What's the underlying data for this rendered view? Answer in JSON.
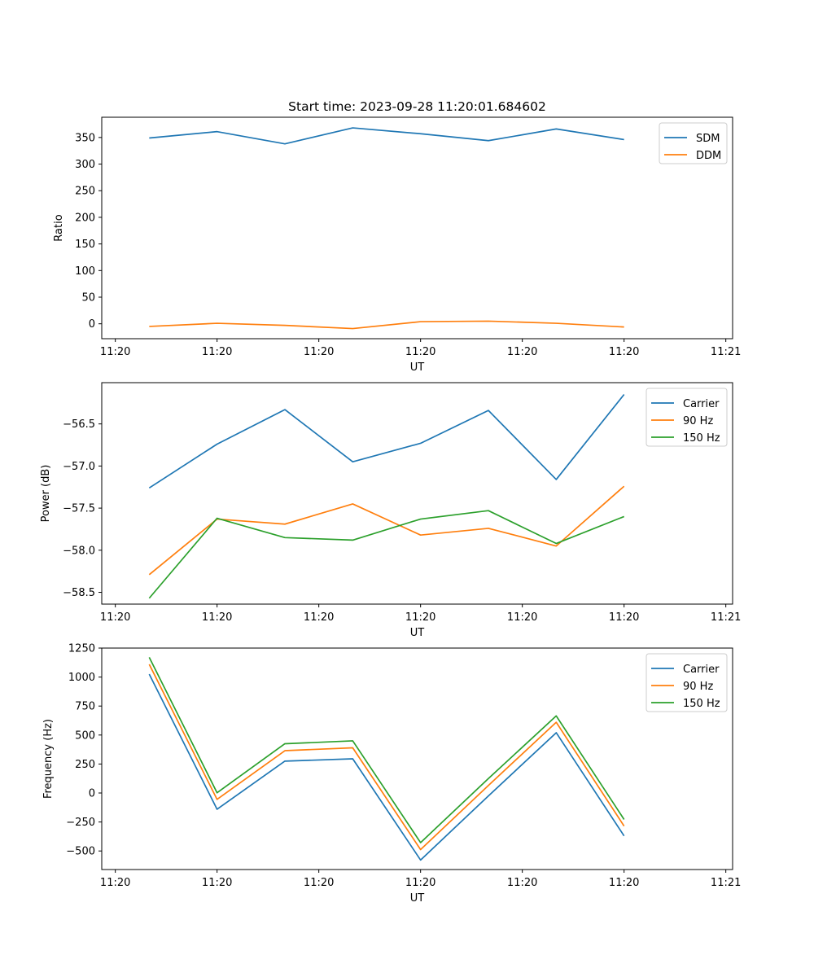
{
  "chart_data": [
    {
      "type": "line",
      "title": "Start time: 2023-09-28 11:20:01.684602",
      "xlabel": "UT",
      "ylabel": "Ratio",
      "x": [
        1,
        2,
        3,
        4,
        5,
        6,
        7,
        8
      ],
      "xlim": [
        0.3,
        9.6
      ],
      "xticks": [
        0.5,
        2,
        3.5,
        5,
        6.5,
        8,
        9.5
      ],
      "xtick_labels": [
        "11:20",
        "11:20",
        "11:20",
        "11:20",
        "11:20",
        "11:20",
        "11:21"
      ],
      "ylim": [
        -28,
        388
      ],
      "yticks": [
        0,
        50,
        100,
        150,
        200,
        250,
        300,
        350
      ],
      "ytick_labels": [
        "0",
        "50",
        "100",
        "150",
        "200",
        "250",
        "300",
        "350"
      ],
      "legend_position": "top-right",
      "series": [
        {
          "name": "SDM",
          "color": "#1f77b4",
          "values": [
            349,
            361,
            338,
            368,
            357,
            344,
            366,
            346
          ]
        },
        {
          "name": "DDM",
          "color": "#ff7f0e",
          "values": [
            -5,
            1,
            -3,
            -9,
            4,
            5,
            1,
            -6
          ]
        }
      ]
    },
    {
      "type": "line",
      "xlabel": "UT",
      "ylabel": "Power (dB)",
      "x": [
        1,
        2,
        3,
        4,
        5,
        6,
        7,
        8
      ],
      "xlim": [
        0.3,
        9.6
      ],
      "xticks": [
        0.5,
        2,
        3.5,
        5,
        6.5,
        8,
        9.5
      ],
      "xtick_labels": [
        "11:20",
        "11:20",
        "11:20",
        "11:20",
        "11:20",
        "11:20",
        "11:21"
      ],
      "ylim": [
        -58.64,
        -56.01
      ],
      "yticks": [
        -58.5,
        -58.0,
        -57.5,
        -57.0,
        -56.5
      ],
      "ytick_labels": [
        "−58.5",
        "−58.0",
        "−57.5",
        "−57.0",
        "−56.5"
      ],
      "legend_position": "top-right",
      "series": [
        {
          "name": "Carrier",
          "color": "#1f77b4",
          "values": [
            -57.26,
            -56.74,
            -56.33,
            -56.95,
            -56.73,
            -56.34,
            -57.16,
            -56.15
          ]
        },
        {
          "name": "90 Hz",
          "color": "#ff7f0e",
          "values": [
            -58.29,
            -57.63,
            -57.69,
            -57.45,
            -57.82,
            -57.74,
            -57.95,
            -57.24
          ]
        },
        {
          "name": "150 Hz",
          "color": "#2ca02c",
          "values": [
            -58.57,
            -57.62,
            -57.85,
            -57.88,
            -57.63,
            -57.53,
            -57.92,
            -57.6
          ]
        }
      ]
    },
    {
      "type": "line",
      "xlabel": "UT",
      "ylabel": "Frequency (Hz)",
      "x": [
        1,
        2,
        3,
        4,
        5,
        6,
        7,
        8
      ],
      "xlim": [
        0.3,
        9.6
      ],
      "xticks": [
        0.5,
        2,
        3.5,
        5,
        6.5,
        8,
        9.5
      ],
      "xtick_labels": [
        "11:20",
        "11:20",
        "11:20",
        "11:20",
        "11:20",
        "11:20",
        "11:21"
      ],
      "ylim": [
        -660,
        1250
      ],
      "yticks": [
        -500,
        -250,
        0,
        250,
        500,
        750,
        1000,
        1250
      ],
      "ytick_labels": [
        "−500",
        "−250",
        "0",
        "250",
        "500",
        "750",
        "1000",
        "1250"
      ],
      "legend_position": "top-right",
      "series": [
        {
          "name": "Carrier",
          "color": "#1f77b4",
          "values": [
            1025,
            -140,
            275,
            295,
            -578,
            -25,
            520,
            -370
          ]
        },
        {
          "name": "90 Hz",
          "color": "#ff7f0e",
          "values": [
            1110,
            -55,
            365,
            390,
            -488,
            65,
            610,
            -285
          ]
        },
        {
          "name": "150 Hz",
          "color": "#2ca02c",
          "values": [
            1170,
            2,
            425,
            450,
            -428,
            125,
            665,
            -228
          ]
        }
      ]
    }
  ]
}
